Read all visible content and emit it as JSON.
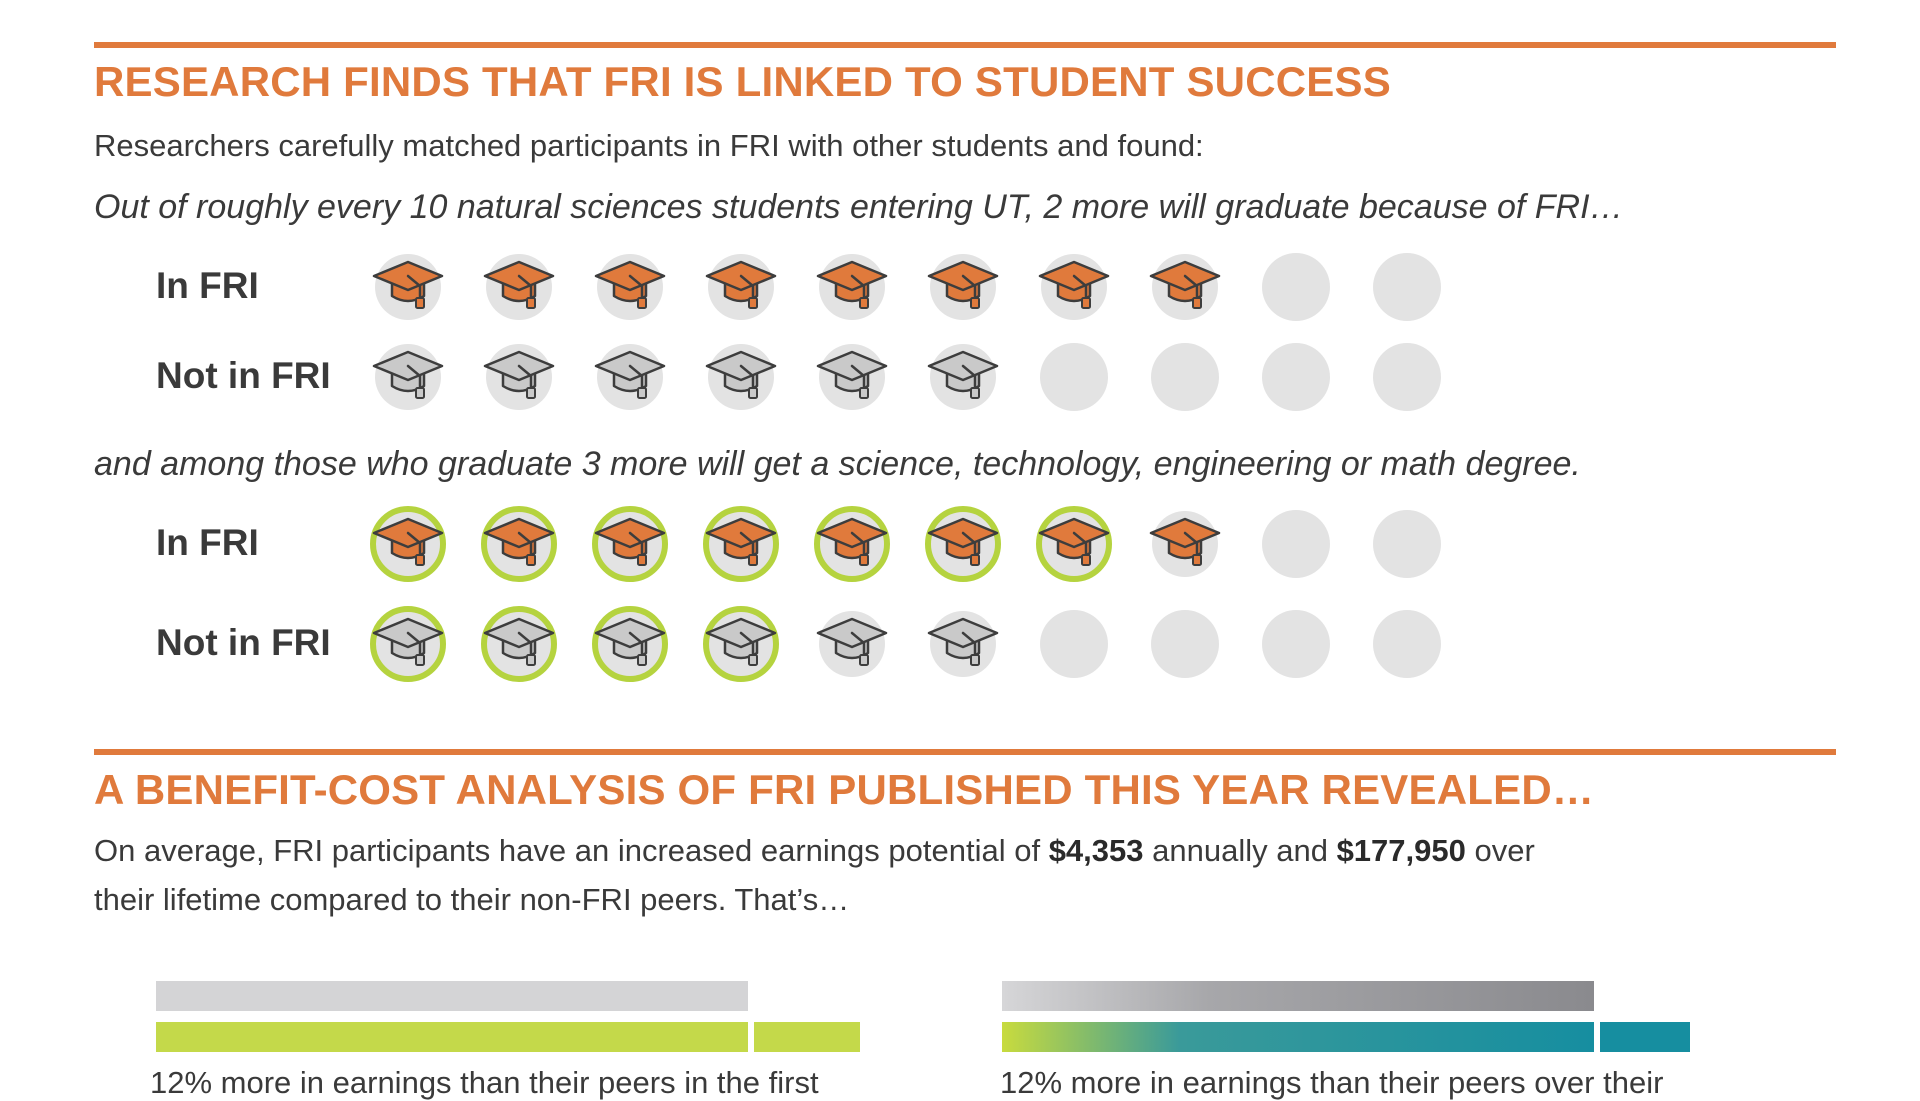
{
  "colors": {
    "accent_orange": "#e07a3c",
    "cap_gray": "#c9c9c9",
    "ring_green": "#b5d33f",
    "empty_circle": "#e3e3e3",
    "bar_gray": "#d4d4d6",
    "bar_green": "#c4d94a",
    "bar_teal": "#168ea0"
  },
  "section1": {
    "title": "RESEARCH FINDS THAT FRI IS LINKED TO STUDENT SUCCESS",
    "intro": "Researchers carefully matched participants in FRI with other students and found:",
    "statement1": "Out of roughly every 10 natural sciences students entering UT, 2 more will graduate because of FRI…",
    "statement2": "and among those who graduate 3 more will get a science, technology, engineering or math degree.",
    "rows_graduation": [
      {
        "label": "In FRI",
        "graduates": 8,
        "total": 10,
        "cap": "graduation-cap-orange-icon"
      },
      {
        "label": "Not in FRI",
        "graduates": 6,
        "total": 10,
        "cap": "graduation-cap-gray-icon"
      }
    ],
    "rows_stem": [
      {
        "label": "In FRI",
        "graduates": 8,
        "stem": 7,
        "total": 10,
        "cap": "graduation-cap-orange-icon"
      },
      {
        "label": "Not in FRI",
        "graduates": 6,
        "stem": 4,
        "total": 10,
        "cap": "graduation-cap-gray-icon"
      }
    ]
  },
  "section2": {
    "title": "A BENEFIT-COST ANALYSIS OF FRI PUBLISHED THIS YEAR REVEALED…",
    "line1_pre": "On average, FRI participants have an increased earnings potential of ",
    "annual_amount": "$4,353",
    "line1_mid": " annually and ",
    "lifetime_amount": "$177,950",
    "line1_post": " over",
    "line2": "their lifetime compared to their non-FRI peers. That’s…",
    "cut_text_left": "12% more in earnings than their peers in the first",
    "cut_text_right": "12% more in earnings than their peers over their"
  }
}
